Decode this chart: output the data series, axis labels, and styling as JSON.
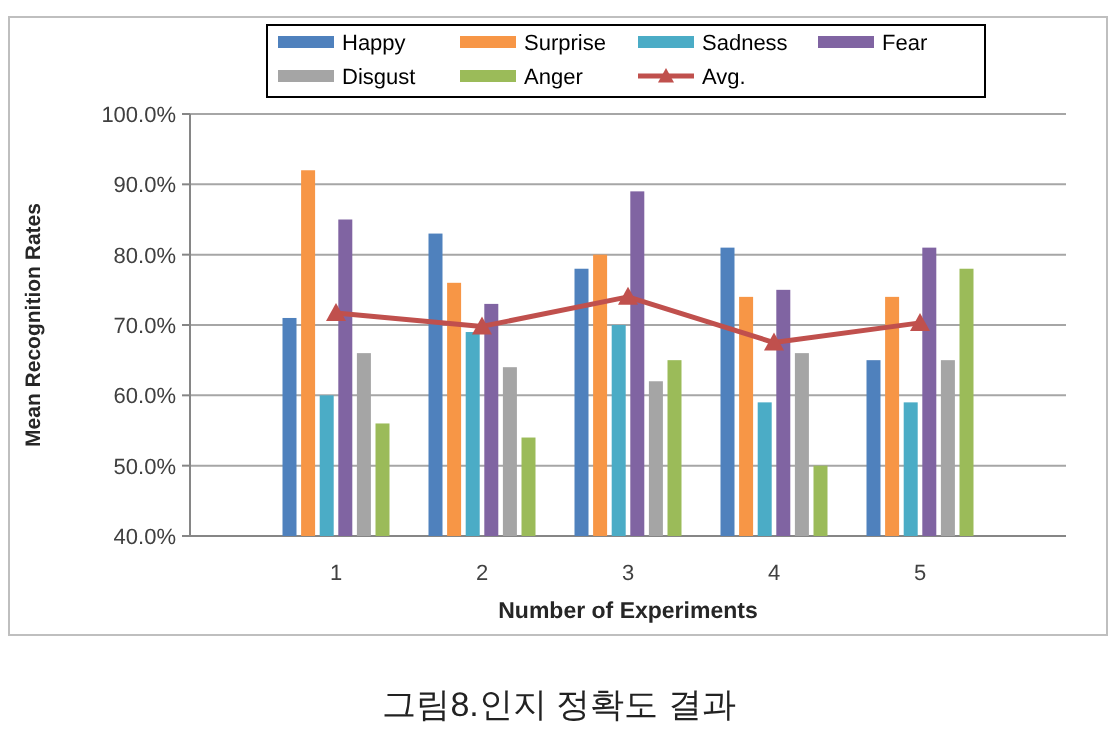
{
  "chart_data": {
    "type": "bar",
    "xlabel": "Number of Experiments",
    "ylabel": "Mean Recognition Rates",
    "annotations": [
      "그림8.인지 정확도 결과"
    ],
    "categories": [
      "1",
      "2",
      "3",
      "4",
      "5"
    ],
    "series": [
      {
        "name": "Happy",
        "color": "#4f81bd",
        "values": [
          71,
          83,
          78,
          81,
          65
        ]
      },
      {
        "name": "Surprise",
        "color": "#f79646",
        "values": [
          92,
          76,
          80,
          74,
          74
        ]
      },
      {
        "name": "Sadness",
        "color": "#4bacc6",
        "values": [
          60,
          69,
          70,
          59,
          59
        ]
      },
      {
        "name": "Fear",
        "color": "#8064a2",
        "values": [
          85,
          73,
          89,
          75,
          81
        ]
      },
      {
        "name": "Disgust",
        "color": "#a5a5a5",
        "values": [
          66,
          64,
          62,
          66,
          65
        ]
      },
      {
        "name": "Anger",
        "color": "#9bbb59",
        "values": [
          56,
          54,
          65,
          50,
          78
        ]
      },
      {
        "name": "Avg.",
        "color": "#c0504d",
        "type": "line",
        "marker": "triangle",
        "values": [
          71.7,
          69.8,
          74.0,
          67.5,
          70.3
        ]
      }
    ],
    "ylim": [
      40,
      100
    ],
    "yticks": [
      {
        "value": 40,
        "label": "40.0%"
      },
      {
        "value": 50,
        "label": "50.0%"
      },
      {
        "value": 60,
        "label": "60.0%"
      },
      {
        "value": 70,
        "label": "70.0%"
      },
      {
        "value": 80,
        "label": "80.0%"
      },
      {
        "value": 90,
        "label": "90.0%"
      },
      {
        "value": 100,
        "label": "100.0%"
      }
    ],
    "grid": "y",
    "legend": "top"
  }
}
